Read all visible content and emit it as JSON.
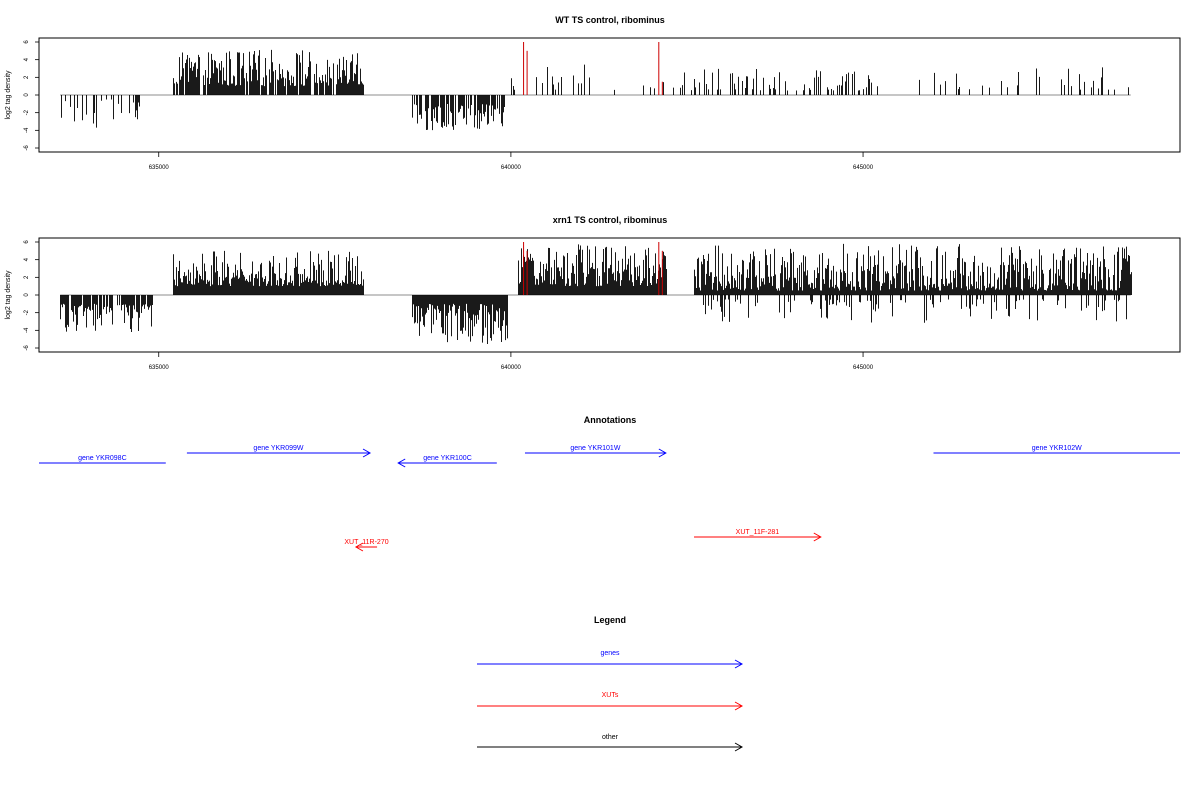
{
  "colors": {
    "gene": "#0000ff",
    "xut": "#ff0000",
    "other": "#000000",
    "bars": "#000000",
    "highlight": "#cc0000",
    "axis": "#000000",
    "baseline": "#666666"
  },
  "chart_data": [
    {
      "type": "bar",
      "title": "WT TS control, ribominus",
      "xlabel": "",
      "ylabel": "log2 tag density",
      "xlim": [
        633300,
        649500
      ],
      "ylim": [
        -6,
        6
      ],
      "x_ticks": [
        635000,
        640000,
        645000
      ],
      "x_tick_labels": [
        "635000",
        "640000",
        "645000"
      ],
      "y_ticks": [
        -6,
        -4,
        -2,
        0,
        2,
        4,
        6
      ],
      "y_tick_labels": [
        "-6",
        "-4",
        "-2",
        "0",
        "2",
        "4",
        "6"
      ],
      "grid": false,
      "baseline_range": [
        633600,
        648800
      ],
      "segments": [
        {
          "start": 633600,
          "end": 634900,
          "density": 0.25,
          "sign": -1,
          "min": 0.5,
          "max": 3.8
        },
        {
          "start": 635200,
          "end": 637900,
          "density": 0.9,
          "sign": 1,
          "min": 1.0,
          "max": 5.2
        },
        {
          "start": 638600,
          "end": 639900,
          "density": 0.75,
          "sign": -1,
          "min": 1.0,
          "max": 4.0
        },
        {
          "start": 639900,
          "end": 642300,
          "density": 0.12,
          "sign": 1,
          "min": 0.5,
          "max": 3.5
        },
        {
          "start": 642400,
          "end": 645200,
          "density": 0.3,
          "sign": 1,
          "min": 0.5,
          "max": 3.0
        },
        {
          "start": 645700,
          "end": 648800,
          "density": 0.1,
          "sign": 1,
          "min": 0.6,
          "max": 3.3
        }
      ],
      "highlight_bars": [
        {
          "x": 640180,
          "y": 6.0
        },
        {
          "x": 640230,
          "y": 5.0
        },
        {
          "x": 642100,
          "y": 6.0
        },
        {
          "x": 642150,
          "y": 1.5
        }
      ]
    },
    {
      "type": "bar",
      "title": "xrn1 TS control, ribominus",
      "xlabel": "",
      "ylabel": "log2 tag density",
      "xlim": [
        633300,
        649500
      ],
      "ylim": [
        -6,
        6
      ],
      "x_ticks": [
        635000,
        640000,
        645000
      ],
      "x_tick_labels": [
        "635000",
        "640000",
        "645000"
      ],
      "y_ticks": [
        -6,
        -4,
        -2,
        0,
        2,
        4,
        6
      ],
      "y_tick_labels": [
        "-6",
        "-4",
        "-2",
        "0",
        "2",
        "4",
        "6"
      ],
      "grid": false,
      "baseline_range": [
        633600,
        648800
      ],
      "segments": [
        {
          "start": 633600,
          "end": 634900,
          "density": 0.8,
          "sign": -1,
          "min": 1.0,
          "max": 4.2
        },
        {
          "start": 635200,
          "end": 637900,
          "density": 1.0,
          "sign": 1,
          "min": 1.0,
          "max": 5.0
        },
        {
          "start": 638600,
          "end": 639950,
          "density": 1.0,
          "sign": -1,
          "min": 1.0,
          "max": 5.8
        },
        {
          "start": 640100,
          "end": 642200,
          "density": 1.0,
          "sign": 1,
          "min": 1.0,
          "max": 5.8
        },
        {
          "start": 642600,
          "end": 648800,
          "density": 1.0,
          "sign": 1,
          "min": 0.5,
          "max": 5.8
        },
        {
          "start": 642600,
          "end": 648800,
          "density": 0.25,
          "sign": -1,
          "min": 0.5,
          "max": 3.2
        }
      ],
      "highlight_bars": [
        {
          "x": 640180,
          "y": 6.0
        },
        {
          "x": 640230,
          "y": 5.0
        },
        {
          "x": 642100,
          "y": 6.0
        },
        {
          "x": 642150,
          "y": 5.0
        }
      ]
    }
  ],
  "annotations": {
    "title": "Annotations",
    "xlim": [
      633300,
      649500
    ],
    "features": [
      {
        "label": "gene YKR098C",
        "kind": "gene",
        "start": 633300,
        "end": 635100,
        "strand": "none",
        "row": 2
      },
      {
        "label": "gene YKR099W",
        "kind": "gene",
        "start": 635400,
        "end": 638000,
        "strand": "+",
        "row": 1
      },
      {
        "label": "gene YKR100C",
        "kind": "gene",
        "start": 638400,
        "end": 639800,
        "strand": "-",
        "row": 2
      },
      {
        "label": "gene YKR101W",
        "kind": "gene",
        "start": 640200,
        "end": 642200,
        "strand": "+",
        "row": 1
      },
      {
        "label": "gene YKR102W",
        "kind": "gene",
        "start": 646000,
        "end": 649500,
        "strand": "none",
        "row": 1
      },
      {
        "label": "XUT_11R-270",
        "kind": "xut",
        "start": 637800,
        "end": 638100,
        "strand": "-",
        "row": 4
      },
      {
        "label": "XUT_11F-281",
        "kind": "xut",
        "start": 642600,
        "end": 644400,
        "strand": "+",
        "row": 3
      }
    ]
  },
  "legend": {
    "title": "Legend",
    "items": [
      {
        "label": "genes",
        "kind": "gene"
      },
      {
        "label": "XUTs",
        "kind": "xut"
      },
      {
        "label": "other",
        "kind": "other"
      }
    ]
  }
}
